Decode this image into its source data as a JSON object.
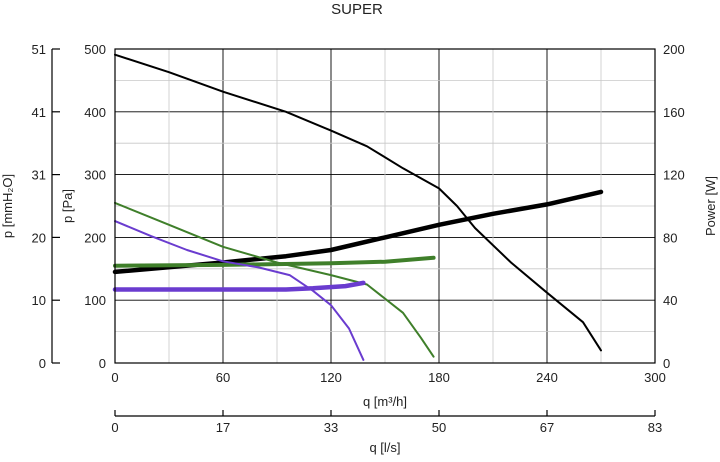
{
  "chart_data": {
    "type": "line",
    "title": "SUPER",
    "plot": {
      "grid": true,
      "border": true
    },
    "x_axis_main": {
      "label": "q [m³/h]",
      "range": [
        0,
        300
      ],
      "ticks": [
        "0",
        "60",
        "120",
        "180",
        "240",
        "300"
      ]
    },
    "x_axis_secondary": {
      "label": "q [l/s]",
      "ticks": [
        "0",
        "17",
        "33",
        "50",
        "67",
        "83"
      ]
    },
    "y_axis_pa": {
      "label": "p [Pa]",
      "range": [
        0,
        500
      ],
      "ticks": [
        "0",
        "100",
        "200",
        "300",
        "400",
        "500"
      ]
    },
    "y_axis_mmh2o": {
      "label": "p [mmH₂O]",
      "ticks": [
        "0",
        "10",
        "20",
        "31",
        "41",
        "51"
      ]
    },
    "y_axis_power": {
      "label": "Power [W]",
      "range": [
        0,
        200
      ],
      "ticks": [
        "0",
        "40",
        "80",
        "120",
        "160",
        "200"
      ]
    },
    "series": [
      {
        "axis": "pressure",
        "color": "#000000",
        "width": 2,
        "points": [
          [
            0,
            491
          ],
          [
            30,
            463
          ],
          [
            60,
            432
          ],
          [
            95,
            400
          ],
          [
            120,
            370
          ],
          [
            140,
            345
          ],
          [
            160,
            310
          ],
          [
            180,
            278
          ],
          [
            190,
            250
          ],
          [
            200,
            215
          ],
          [
            220,
            160
          ],
          [
            240,
            112
          ],
          [
            260,
            65
          ],
          [
            270,
            20
          ]
        ]
      },
      {
        "axis": "power",
        "color": "#000000",
        "width": 4.5,
        "points": [
          [
            0,
            58
          ],
          [
            60,
            64
          ],
          [
            95,
            68
          ],
          [
            120,
            72
          ],
          [
            150,
            80
          ],
          [
            180,
            88
          ],
          [
            210,
            95
          ],
          [
            240,
            101
          ],
          [
            270,
            109
          ]
        ]
      },
      {
        "axis": "pressure",
        "color": "#3f7f2a",
        "width": 2,
        "points": [
          [
            0,
            255
          ],
          [
            30,
            220
          ],
          [
            60,
            185
          ],
          [
            90,
            160
          ],
          [
            120,
            140
          ],
          [
            140,
            125
          ],
          [
            160,
            80
          ],
          [
            170,
            40
          ],
          [
            177,
            10
          ]
        ]
      },
      {
        "axis": "power",
        "color": "#3f7f2a",
        "width": 4,
        "points": [
          [
            0,
            62
          ],
          [
            60,
            62.5
          ],
          [
            120,
            63.5
          ],
          [
            150,
            64.5
          ],
          [
            177,
            67
          ]
        ]
      },
      {
        "axis": "pressure",
        "color": "#6a3ccf",
        "width": 2,
        "points": [
          [
            0,
            226
          ],
          [
            20,
            202
          ],
          [
            40,
            180
          ],
          [
            60,
            162
          ],
          [
            80,
            152
          ],
          [
            97,
            140
          ],
          [
            110,
            115
          ],
          [
            120,
            92
          ],
          [
            130,
            55
          ],
          [
            138,
            5
          ]
        ]
      },
      {
        "axis": "power",
        "color": "#6a3ccf",
        "width": 4.5,
        "points": [
          [
            0,
            46.8
          ],
          [
            60,
            46.8
          ],
          [
            95,
            46.8
          ],
          [
            110,
            47.6
          ],
          [
            128,
            49
          ],
          [
            138,
            51
          ]
        ]
      }
    ]
  }
}
